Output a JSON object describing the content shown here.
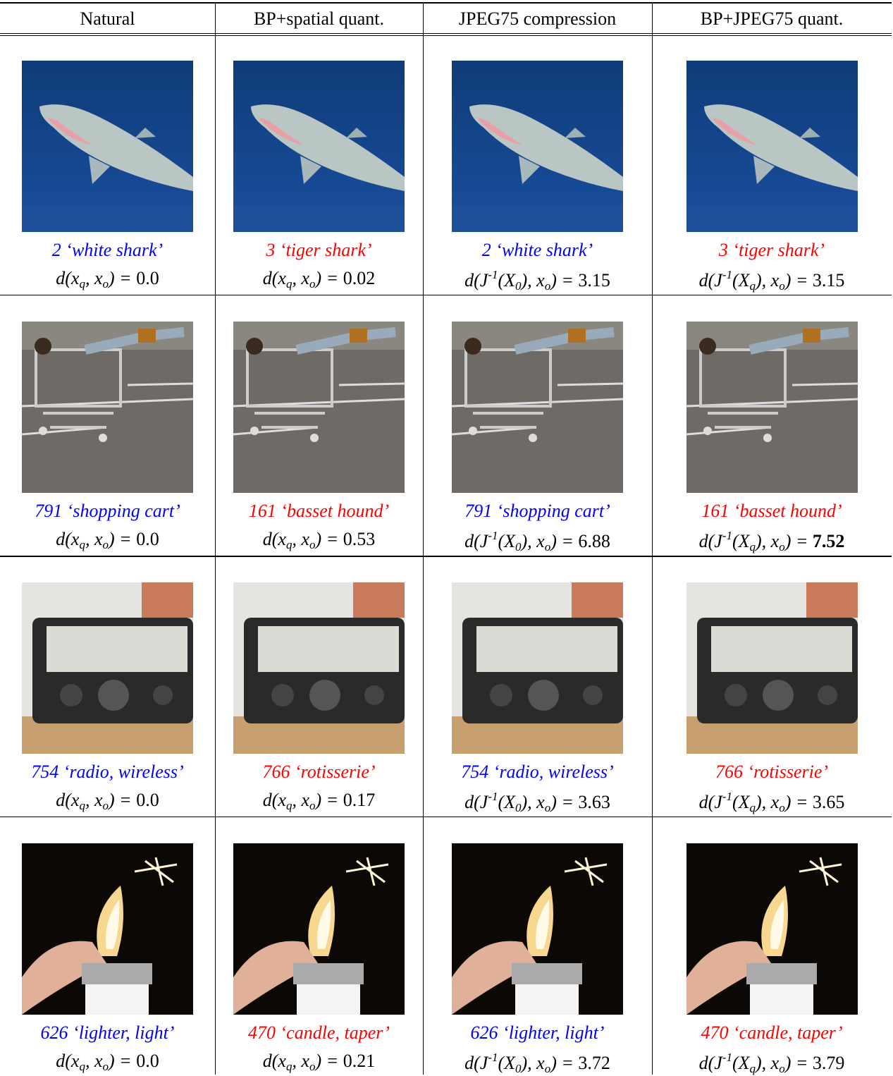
{
  "table": {
    "header": [
      "Natural",
      "BP+spatial quant.",
      "JPEG75 compression",
      "BP+JPEG75 quant."
    ],
    "rows": [
      {
        "image": "shark",
        "cells": [
          {
            "label": "2 ‘white shark’",
            "color": "blue",
            "formula": "d(x_q, x_o) = ",
            "value": "0.0"
          },
          {
            "label": "3 ‘tiger shark’",
            "color": "red",
            "formula": "d(x_q, x_o) = ",
            "value": "0.02"
          },
          {
            "label": "2 ‘white shark’",
            "color": "blue",
            "formula": "d(J^{-1}(X_0), x_o) = ",
            "value": "3.15"
          },
          {
            "label": "3 ‘tiger shark’",
            "color": "red",
            "formula": "d(J^{-1}(X_q), x_o) = ",
            "value": "3.15"
          }
        ]
      },
      {
        "image": "cart",
        "cells": [
          {
            "label": "791 ‘shopping cart’",
            "color": "blue",
            "formula": "d(x_q, x_o) = ",
            "value": "0.0"
          },
          {
            "label": "161 ‘basset hound’",
            "color": "red",
            "formula": "d(x_q, x_o) = ",
            "value": "0.53"
          },
          {
            "label": "791 ‘shopping cart’",
            "color": "blue",
            "formula": "d(J^{-1}(X_0), x_o) = ",
            "value": "6.88"
          },
          {
            "label": "161 ‘basset hound’",
            "color": "red",
            "formula": "d(J^{-1}(X_q), x_o) = ",
            "value": "7.52",
            "bold": true
          }
        ]
      },
      {
        "image": "radio",
        "cells": [
          {
            "label": "754 ‘radio, wireless’",
            "color": "blue",
            "formula": "d(x_q, x_o) = ",
            "value": "0.0"
          },
          {
            "label": "766 ‘rotisserie’",
            "color": "red",
            "formula": "d(x_q, x_o) = ",
            "value": "0.17"
          },
          {
            "label": "754 ‘radio, wireless’",
            "color": "blue",
            "formula": "d(J^{-1}(X_0), x_o) = ",
            "value": "3.63"
          },
          {
            "label": "766 ‘rotisserie’",
            "color": "red",
            "formula": "d(J^{-1}(X_q), x_o) = ",
            "value": "3.65"
          }
        ]
      },
      {
        "image": "lighter",
        "cells": [
          {
            "label": "626 ‘lighter, light’",
            "color": "blue",
            "formula": "d(x_q, x_o) = ",
            "value": "0.0"
          },
          {
            "label": "470 ‘candle, taper’",
            "color": "red",
            "formula": "d(x_q, x_o) = ",
            "value": "0.21"
          },
          {
            "label": "626 ‘lighter, light’",
            "color": "blue",
            "formula": "d(J^{-1}(X_0), x_o) = ",
            "value": "3.72"
          },
          {
            "label": "470 ‘candle, taper’",
            "color": "red",
            "formula": "d(J^{-1}(X_q), x_o) = ",
            "value": "3.79"
          }
        ]
      }
    ]
  }
}
